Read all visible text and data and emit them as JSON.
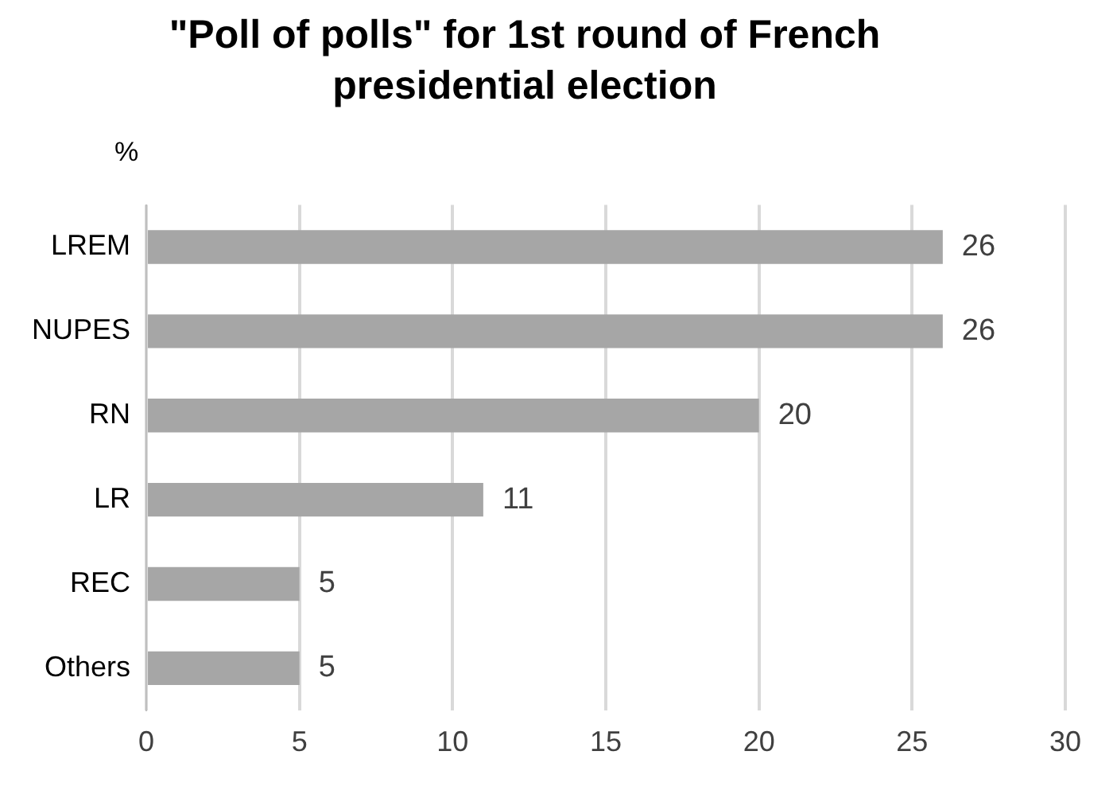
{
  "chart_data": {
    "type": "bar",
    "orientation": "horizontal",
    "title": "\"Poll of polls\" for 1st round of French presidential election",
    "ylabel": "%",
    "categories": [
      "LREM",
      "NUPES",
      "RN",
      "LR",
      "REC",
      "Others"
    ],
    "values": [
      26,
      26,
      20,
      11,
      5,
      5
    ],
    "color": "#a6a6a6",
    "xlim": [
      0,
      30
    ],
    "xticks": [
      0,
      5,
      10,
      15,
      20,
      25,
      30
    ],
    "grid": "x",
    "legend": false,
    "data_labels": true
  }
}
